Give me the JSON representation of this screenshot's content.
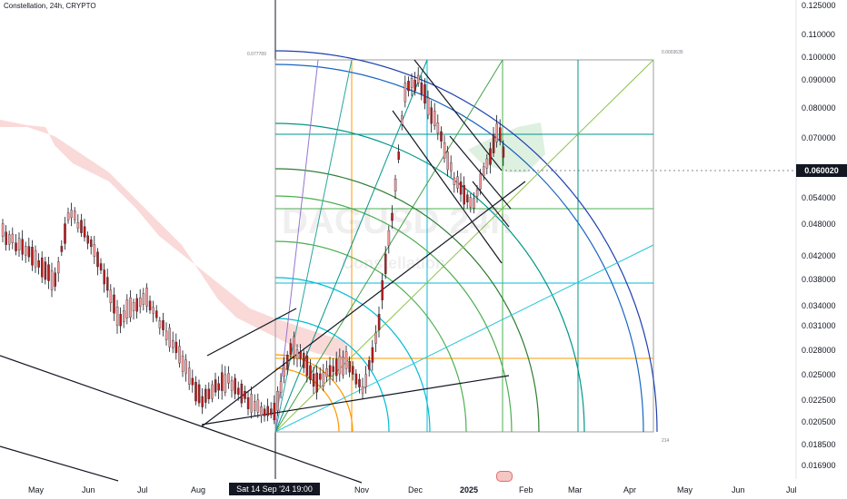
{
  "header": {
    "title": "Constellation, 24h, CRYPTO"
  },
  "watermark": {
    "symbol": "DAGUSD",
    "interval": "24h",
    "name": "Constellation"
  },
  "chart_data": {
    "type": "candlestick",
    "title": "Constellation, 24h, CRYPTO",
    "y_scale": "log",
    "ylim": [
      0.016,
      0.13
    ],
    "price_ticks": [
      "0.125000",
      "0.110000",
      "0.100000",
      "0.090000",
      "0.080000",
      "0.070000",
      "0.060020",
      "0.054000",
      "0.048000",
      "0.042000",
      "0.038000",
      "0.034000",
      "0.031000",
      "0.028000",
      "0.025000",
      "0.022500",
      "0.020500",
      "0.018500",
      "0.016900"
    ],
    "current_price": "0.060020",
    "x_ticks": [
      "May",
      "Jun",
      "Jul",
      "Aug",
      "Sat 14 Sep '24",
      "19:00",
      "Nov",
      "Dec",
      "2025",
      "Feb",
      "Mar",
      "Apr",
      "May",
      "Jun",
      "Jul"
    ],
    "crosshair_time": "Sat 14 Sep '24   19:00",
    "gann_box_labels": {
      "top_left": "0.077789",
      "top_right": "0.0003635",
      "bottom_right": "214"
    },
    "series_colors": {
      "up": "#26a69a",
      "down": "#ef5350",
      "candle_body": "#b71c1c",
      "cloud": "#f8c9c9"
    }
  },
  "colors": {
    "accent": "#2962ff",
    "badge_bg": "#131722"
  }
}
